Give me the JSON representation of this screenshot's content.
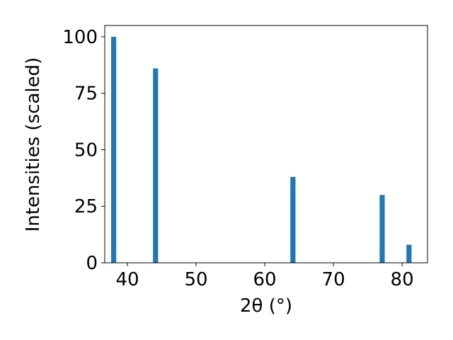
{
  "chart_data": {
    "type": "bar",
    "x_label": "2θ (°)",
    "y_label": "Intensities (scaled)",
    "x": [
      38.0,
      44.1,
      64.1,
      77.1,
      81.0
    ],
    "values": [
      100,
      86,
      38,
      30,
      8
    ],
    "color": "#1f77b4",
    "xlim": [
      36.7,
      83.7
    ],
    "xticks": [
      40,
      50,
      60,
      70,
      80
    ],
    "ylim": [
      0,
      105
    ],
    "yticks": [
      0,
      25,
      50,
      75,
      100
    ]
  }
}
